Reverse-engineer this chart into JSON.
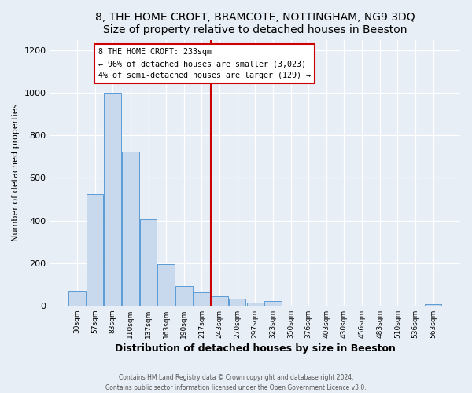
{
  "title": "8, THE HOME CROFT, BRAMCOTE, NOTTINGHAM, NG9 3DQ",
  "subtitle": "Size of property relative to detached houses in Beeston",
  "xlabel": "Distribution of detached houses by size in Beeston",
  "ylabel": "Number of detached properties",
  "bar_labels": [
    "30sqm",
    "57sqm",
    "83sqm",
    "110sqm",
    "137sqm",
    "163sqm",
    "190sqm",
    "217sqm",
    "243sqm",
    "270sqm",
    "297sqm",
    "323sqm",
    "350sqm",
    "376sqm",
    "403sqm",
    "430sqm",
    "456sqm",
    "483sqm",
    "510sqm",
    "536sqm",
    "563sqm"
  ],
  "bar_values": [
    70,
    525,
    1000,
    725,
    405,
    197,
    90,
    62,
    45,
    33,
    13,
    20,
    0,
    0,
    0,
    0,
    0,
    0,
    0,
    0,
    8
  ],
  "bar_color": "#c9d9ed",
  "bar_edge_color": "#5b9bd5",
  "vline_x_idx": 8,
  "vline_color": "#cc0000",
  "annotation_title": "8 THE HOME CROFT: 233sqm",
  "annotation_line1": "← 96% of detached houses are smaller (3,023)",
  "annotation_line2": "4% of semi-detached houses are larger (129) →",
  "annotation_box_color": "#ffffff",
  "annotation_box_edge": "#cc0000",
  "ylim": [
    0,
    1250
  ],
  "yticks": [
    0,
    200,
    400,
    600,
    800,
    1000,
    1200
  ],
  "footer_line1": "Contains HM Land Registry data © Crown copyright and database right 2024.",
  "footer_line2": "Contains public sector information licensed under the Open Government Licence v3.0.",
  "fig_bg_color": "#e8eef5",
  "plot_bg_color": "#e8eef5",
  "grid_color": "#ffffff",
  "title_fontsize": 10,
  "subtitle_fontsize": 9
}
